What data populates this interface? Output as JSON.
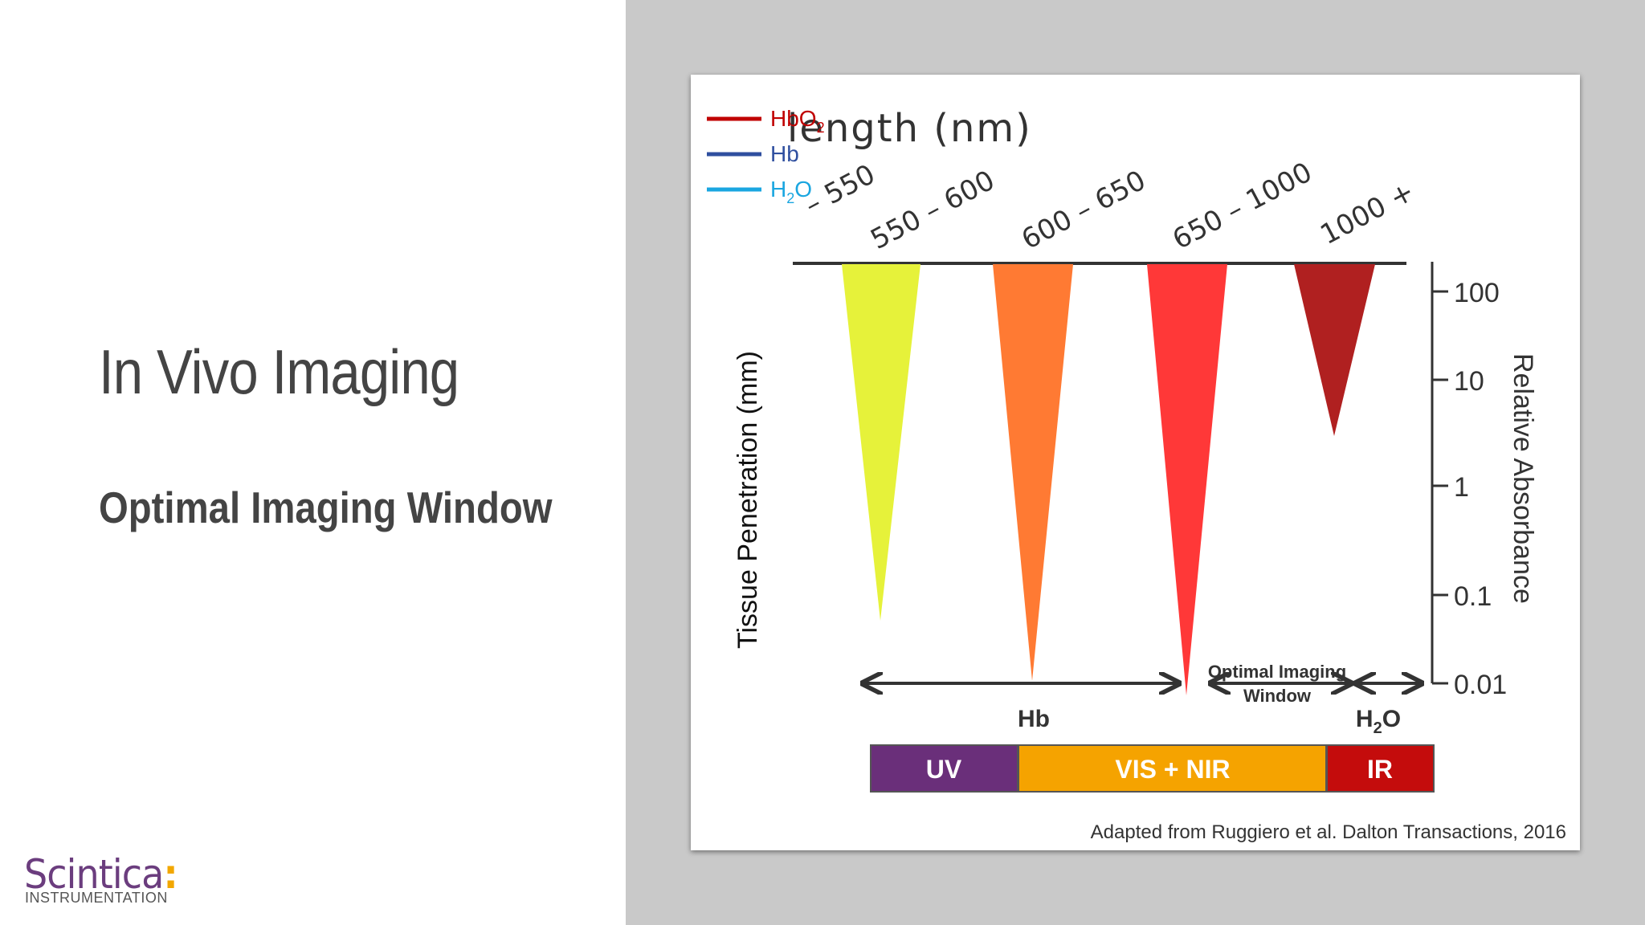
{
  "slide": {
    "title": "In Vivo Imaging",
    "subtitle": "Optimal Imaging Window"
  },
  "logo": {
    "name": "Scintica",
    "colon": ":",
    "tagline": "INSTRUMENTATION"
  },
  "figure": {
    "header": "length (nm)",
    "legend": [
      {
        "label": "HbO",
        "sub": "2",
        "color": "#c00000"
      },
      {
        "label": "Hb",
        "sub": "",
        "color": "#2f4f9f"
      },
      {
        "label": "H",
        "sub": "2",
        "tail": "O",
        "color": "#1aa6e0"
      }
    ],
    "wavelength_ranges": [
      "– 550",
      "550 – 600",
      "600 – 650",
      "650 – 1000",
      "1000 +"
    ],
    "penetration_cones": [
      {
        "range": "– 550",
        "color": "#e6f23a"
      },
      {
        "range": "550 – 600",
        "color": "#ff7a33"
      },
      {
        "range": "600 – 650",
        "color": "#ff3838"
      },
      {
        "range": "650 – 1000",
        "color": "#b02020"
      }
    ],
    "left_axis_label": "Tissue Penetration (mm)",
    "right_axis_label": "Relative Absorbance",
    "right_axis_ticks": [
      "100",
      "10",
      "1",
      "0.1",
      "0.01"
    ],
    "window_label_line1": "Optimal Imaging",
    "window_label_line2": "Window",
    "absorber_hb": "Hb",
    "absorber_h2o": {
      "main": "H",
      "sub": "2",
      "tail": "O"
    },
    "bands": [
      {
        "label": "UV",
        "color": "#6a2f7a"
      },
      {
        "label": "VIS + NIR",
        "color": "#f5a300"
      },
      {
        "label": "IR",
        "color": "#c40c0c"
      }
    ],
    "citation": "Adapted from Ruggiero et al. Dalton Transactions, 2016"
  }
}
